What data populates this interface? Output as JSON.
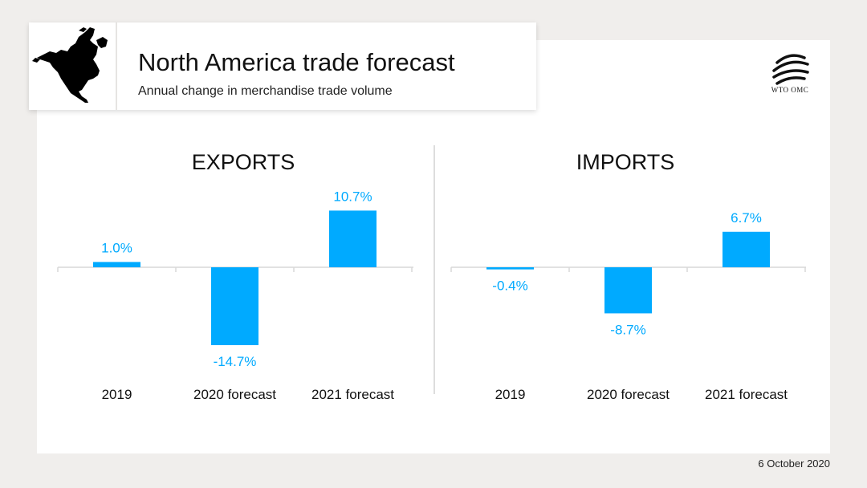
{
  "header": {
    "title": "North America trade forecast",
    "subtitle": "Annual change in merchandise trade volume",
    "map_icon": "north-america-map-icon"
  },
  "logo": {
    "icon": "wto-globe-icon",
    "text": "WTO OMC"
  },
  "footer": {
    "date": "6 October 2020"
  },
  "colors": {
    "bar": "#00aaff",
    "label": "#00aaff",
    "axis": "#d9d9d9",
    "text": "#111111"
  },
  "chart_data": [
    {
      "type": "bar",
      "title": "EXPORTS",
      "categories": [
        "2019",
        "2020 forecast",
        "2021 forecast"
      ],
      "values": [
        1.0,
        -14.7,
        10.7
      ],
      "value_labels": [
        "1.0%",
        "-14.7%",
        "10.7%"
      ],
      "xlabel": "",
      "ylabel": "",
      "ylim": [
        -14.7,
        10.7
      ],
      "grid": false
    },
    {
      "type": "bar",
      "title": "IMPORTS",
      "categories": [
        "2019",
        "2020 forecast",
        "2021 forecast"
      ],
      "values": [
        -0.4,
        -8.7,
        6.7
      ],
      "value_labels": [
        "-0.4%",
        "-8.7%",
        "6.7%"
      ],
      "xlabel": "",
      "ylabel": "",
      "ylim": [
        -8.7,
        6.7
      ],
      "grid": false
    }
  ]
}
